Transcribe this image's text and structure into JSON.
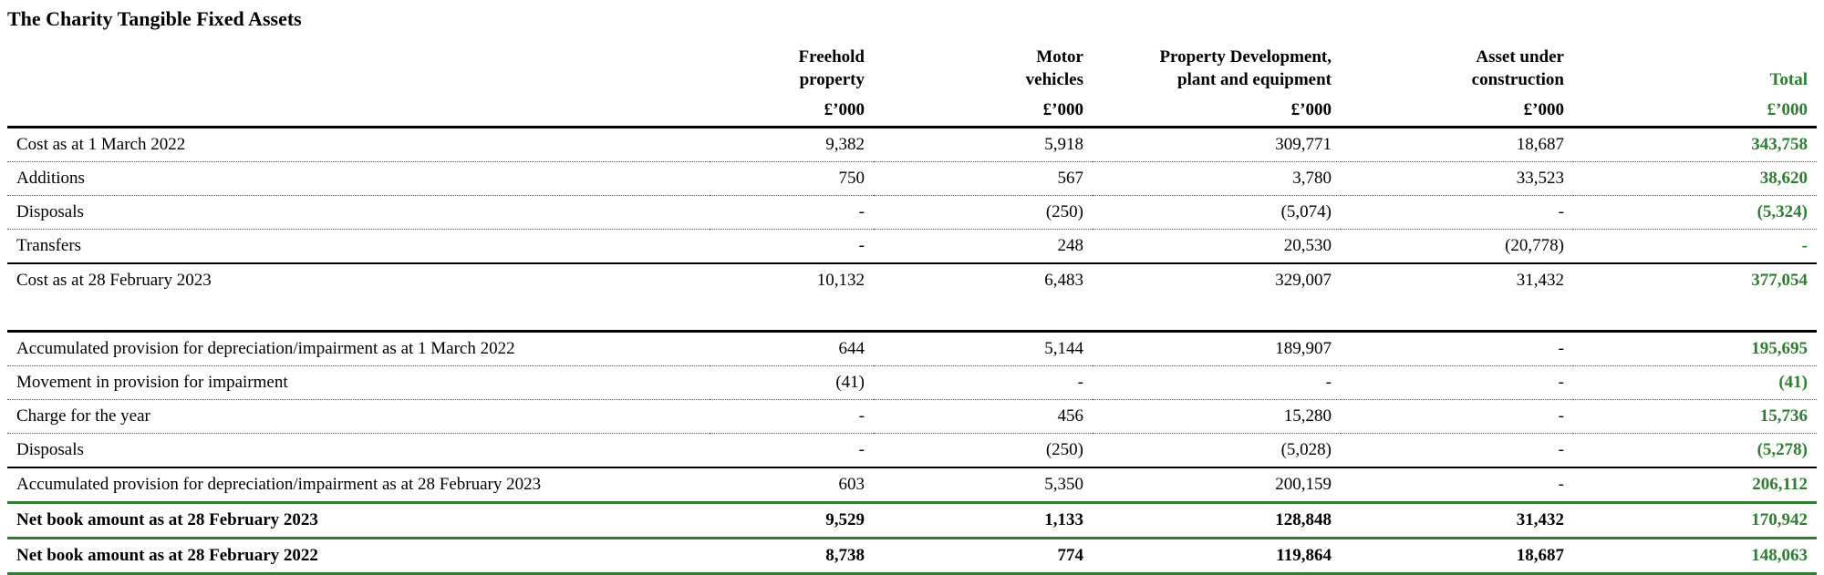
{
  "title": "The Charity Tangible Fixed Assets",
  "header": {
    "columns": [
      {
        "line1": "Freehold",
        "line2": "property",
        "unit": "£’000"
      },
      {
        "line1": "Motor",
        "line2": "vehicles",
        "unit": "£’000"
      },
      {
        "line1": "Property Development,",
        "line2": "plant and equipment",
        "unit": "£’000"
      },
      {
        "line1": "Asset under",
        "line2": "construction",
        "unit": "£’000"
      },
      {
        "line1": "",
        "line2": "Total",
        "unit": "£’000"
      }
    ]
  },
  "rows": [
    {
      "label": "Cost as at 1 March 2022",
      "values": [
        "9,382",
        "5,918",
        "309,771",
        "18,687"
      ],
      "total": "343,758"
    },
    {
      "label": "Additions",
      "values": [
        "750",
        "567",
        "3,780",
        "33,523"
      ],
      "total": "38,620"
    },
    {
      "label": "Disposals",
      "values": [
        "-",
        "(250)",
        "(5,074)",
        "-"
      ],
      "total": "(5,324)"
    },
    {
      "label": "Transfers",
      "values": [
        "-",
        "248",
        "20,530",
        "(20,778)"
      ],
      "total": "-"
    },
    {
      "label": "Cost as at 28 February 2023",
      "values": [
        "10,132",
        "6,483",
        "329,007",
        "31,432"
      ],
      "total": "377,054"
    },
    {
      "label": "Accumulated provision for depreciation/impairment as at 1 March 2022",
      "values": [
        "644",
        "5,144",
        "189,907",
        "-"
      ],
      "total": "195,695"
    },
    {
      "label": "Movement in provision for impairment",
      "values": [
        "(41)",
        "-",
        "-",
        "-"
      ],
      "total": "(41)"
    },
    {
      "label": "Charge for the year",
      "values": [
        "-",
        "456",
        "15,280",
        "-"
      ],
      "total": "15,736"
    },
    {
      "label": "Disposals",
      "values": [
        "-",
        "(250)",
        "(5,028)",
        "-"
      ],
      "total": "(5,278)"
    },
    {
      "label": "Accumulated provision for depreciation/impairment as at 28 February 2023",
      "values": [
        "603",
        "5,350",
        "200,159",
        "-"
      ],
      "total": "206,112"
    },
    {
      "label": "Net book amount as at 28 February 2023",
      "values": [
        "9,529",
        "1,133",
        "128,848",
        "31,432"
      ],
      "total": "170,942"
    },
    {
      "label": "Net book amount as at 28 February 2022",
      "values": [
        "8,738",
        "774",
        "119,864",
        "18,687"
      ],
      "total": "148,063"
    }
  ],
  "colors": {
    "total_green": "#2e7d32"
  }
}
